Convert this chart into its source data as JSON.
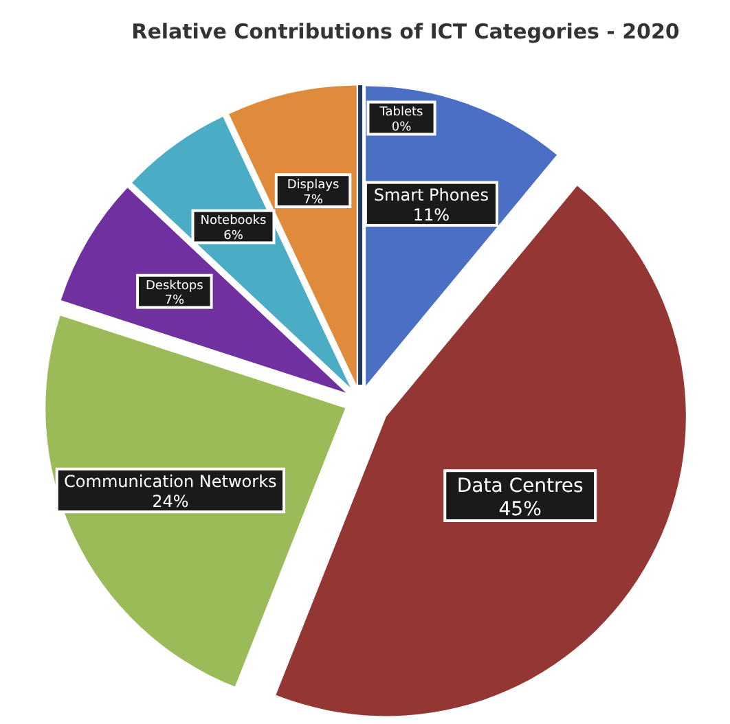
{
  "chart_data": {
    "type": "pie",
    "title": "Relative Contributions of ICT Categories - 2020",
    "categories": [
      "Tablets",
      "Smart Phones",
      "Data Centres",
      "Communication Networks",
      "Desktops",
      "Notebooks",
      "Displays"
    ],
    "values": [
      0,
      11,
      45,
      24,
      7,
      6,
      7
    ],
    "value_labels": [
      "0%",
      "11%",
      "45%",
      "24%",
      "7%",
      "6%",
      "7%"
    ],
    "colors": [
      "#1f3864",
      "#4a6fc4",
      "#943634",
      "#9bbb59",
      "#7030a0",
      "#4bacc6",
      "#e08a3c"
    ]
  }
}
